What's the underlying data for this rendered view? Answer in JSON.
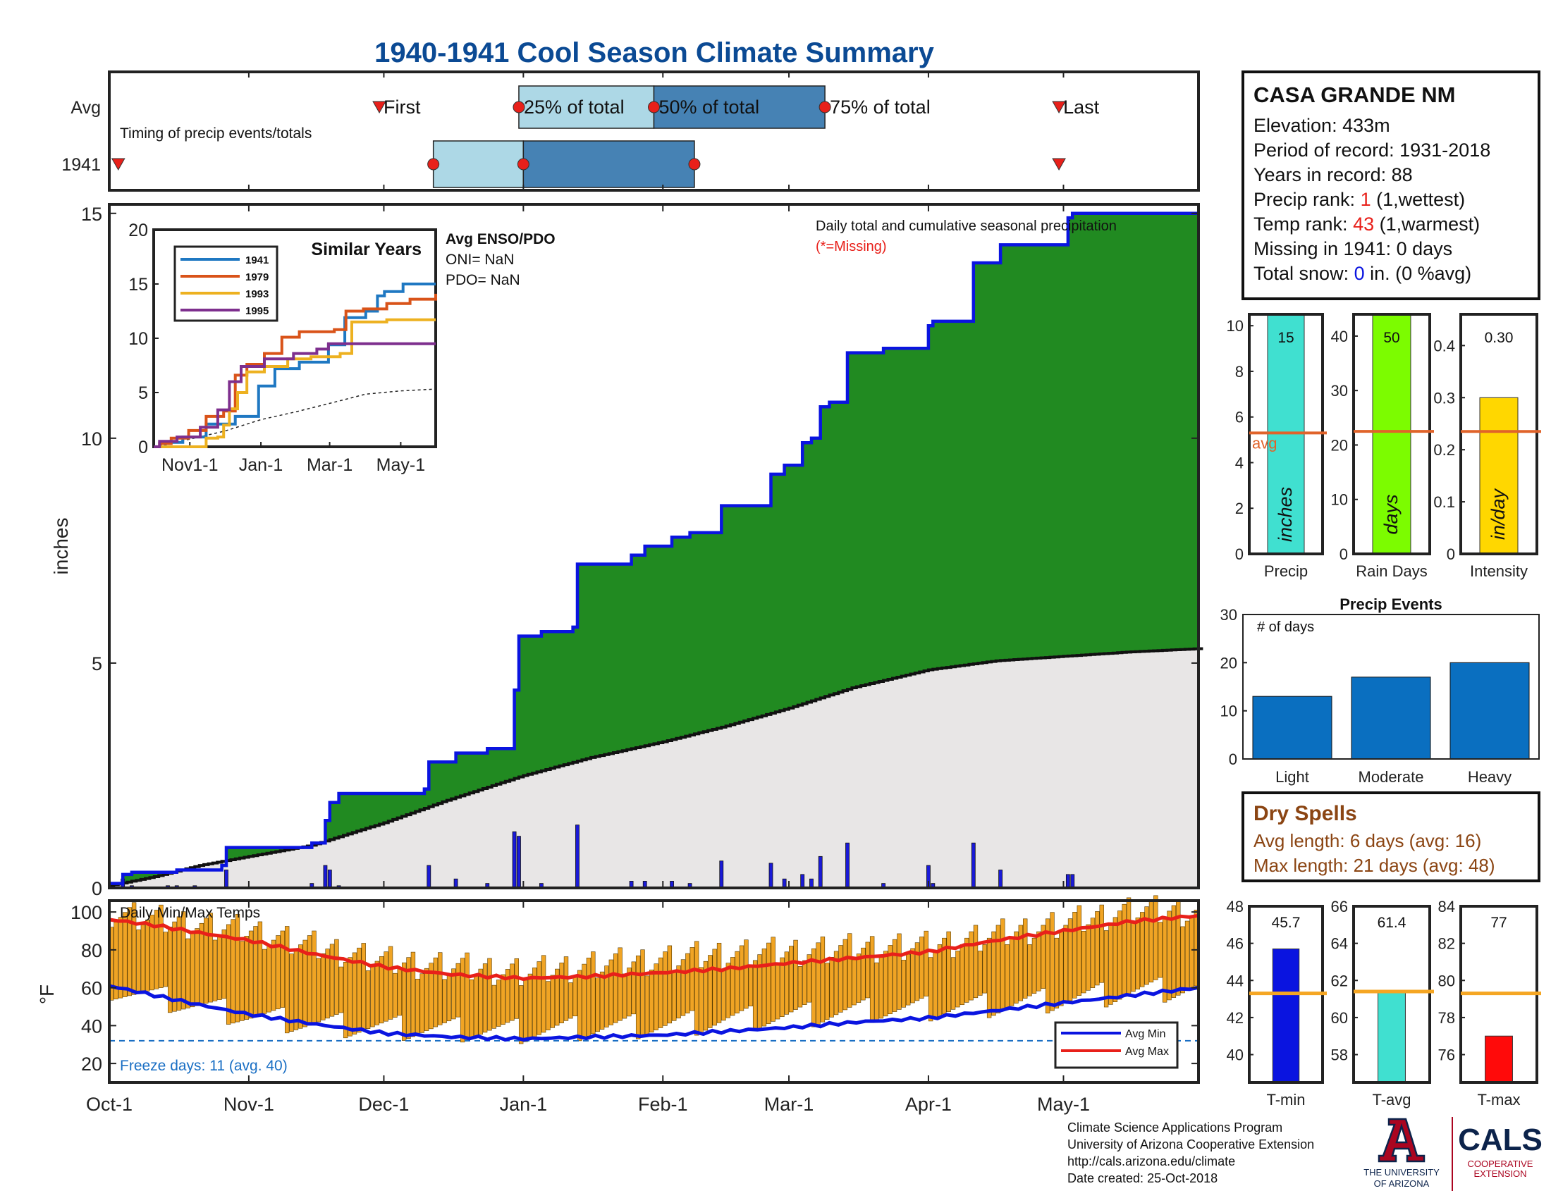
{
  "title": "1940-1941 Cool Season Climate Summary",
  "colors": {
    "title": "#0b4a94",
    "panel_border": "#222222",
    "obs_line": "#0a14e0",
    "surplus_fill": "#218a21",
    "avg_fill": "#e8e6e6",
    "avg_line": "#111111",
    "daily_bar": "#1a1ad8",
    "avg_marker": "#e0632a",
    "rank_red": "#e8201a",
    "snow_blue": "#0a14e0",
    "dry_spell": "#8b4513",
    "light_box": "#add8e6",
    "dark_box": "#4682b4",
    "temp_bar": "#f0a424",
    "avg_min": "#0a14e0",
    "avg_max": "#e8201a",
    "freeze_line": "#1a6fc4",
    "events_bar": "#0a6fc0",
    "precip_gauge": "#40e0d0",
    "raindays_gauge": "#7cfc00",
    "intensity_gauge": "#ffd700",
    "tmin_gauge": "#0a14e0",
    "tavg_gauge": "#40e0d0",
    "tmax_gauge": "#ff0a0a",
    "temp_avg_line": "#f5a623",
    "logo_red": "#ab0520",
    "logo_blue": "#0c234b"
  },
  "timing_panel": {
    "row_labels": [
      "Avg",
      "1941"
    ],
    "caption": "Timing of precip events/totals",
    "marker_labels": {
      "first": "First",
      "p25": "25% of total",
      "p50": "50% of total",
      "p75": "75% of total",
      "last": "Last"
    },
    "avg": {
      "first": 60,
      "p25": 91,
      "p50": 121,
      "p75": 159,
      "last": 211
    },
    "y1941": {
      "first": 2,
      "p25": 72,
      "p50": 92,
      "p75": 130,
      "last": 211
    }
  },
  "station": {
    "name": "CASA GRANDE NM",
    "elevation": "Elevation: 433m",
    "period": "Period of record: 1931-2018",
    "years": "Years in record: 88",
    "precip_rank_prefix": "Precip rank: ",
    "precip_rank_value": "1",
    "precip_rank_suffix": " (1,wettest)",
    "temp_rank_prefix": "Temp rank: ",
    "temp_rank_value": "43",
    "temp_rank_suffix": " (1,warmest)",
    "missing": "Missing in 1941: 0 days",
    "snow_prefix": "Total snow: ",
    "snow_value": "0",
    "snow_suffix": " in. (0 %avg)"
  },
  "main_chart": {
    "ylabel": "inches",
    "annotation": "Daily total and cumulative seasonal precipitation",
    "missing_note": "(*=Missing)",
    "x_ticks": [
      {
        "label": "Oct-1",
        "day": 0
      },
      {
        "label": "Nov-1",
        "day": 31
      },
      {
        "label": "Dec-1",
        "day": 61
      },
      {
        "label": "Jan-1",
        "day": 92
      },
      {
        "label": "Feb-1",
        "day": 123
      },
      {
        "label": "Mar-1",
        "day": 151
      },
      {
        "label": "Apr-1",
        "day": 182
      },
      {
        "label": "May-1",
        "day": 212
      }
    ],
    "y_ticks": [
      0,
      5,
      10,
      15
    ],
    "ylim": [
      0,
      15.2
    ],
    "xlim": [
      0,
      242
    ]
  },
  "chart_data": {
    "type": "area",
    "title": "1940-1941 Cool Season Climate Summary",
    "ylabel": "inches",
    "ylim": [
      0,
      15.2
    ],
    "cumulative_1941": [
      [
        0,
        0.1
      ],
      [
        3,
        0.3
      ],
      [
        5,
        0.35
      ],
      [
        13,
        0.35
      ],
      [
        15,
        0.4
      ],
      [
        18,
        0.4
      ],
      [
        19,
        0.4
      ],
      [
        25,
        0.5
      ],
      [
        26,
        0.9
      ],
      [
        41,
        0.9
      ],
      [
        45,
        1.0
      ],
      [
        48,
        1.5
      ],
      [
        49,
        1.9
      ],
      [
        51,
        2.1
      ],
      [
        53,
        2.1
      ],
      [
        70,
        2.2
      ],
      [
        71,
        2.8
      ],
      [
        76,
        2.8
      ],
      [
        77,
        3.0
      ],
      [
        83,
        3.0
      ],
      [
        84,
        3.1
      ],
      [
        89,
        3.1
      ],
      [
        90,
        4.4
      ],
      [
        91,
        5.6
      ],
      [
        92,
        5.6
      ],
      [
        96,
        5.7
      ],
      [
        103,
        5.8
      ],
      [
        104,
        7.2
      ],
      [
        115,
        7.2
      ],
      [
        116,
        7.4
      ],
      [
        119,
        7.6
      ],
      [
        124,
        7.6
      ],
      [
        125,
        7.8
      ],
      [
        128,
        7.8
      ],
      [
        129,
        7.9
      ],
      [
        135,
        7.9
      ],
      [
        136,
        8.5
      ],
      [
        146,
        8.5
      ],
      [
        147,
        9.2
      ],
      [
        149,
        9.2
      ],
      [
        150,
        9.4
      ],
      [
        153,
        9.4
      ],
      [
        154,
        9.9
      ],
      [
        156,
        10.0
      ],
      [
        158,
        10.7
      ],
      [
        160,
        10.8
      ],
      [
        163,
        10.8
      ],
      [
        164,
        11.9
      ],
      [
        171,
        11.9
      ],
      [
        172,
        12.0
      ],
      [
        181,
        12.0
      ],
      [
        182,
        12.5
      ],
      [
        183,
        12.6
      ],
      [
        191,
        12.6
      ],
      [
        192,
        13.9
      ],
      [
        197,
        13.9
      ],
      [
        198,
        14.3
      ],
      [
        212,
        14.3
      ],
      [
        213,
        14.9
      ],
      [
        214,
        15.0
      ],
      [
        242,
        15.0
      ]
    ],
    "cumulative_avg": [
      [
        0,
        0.05
      ],
      [
        10,
        0.25
      ],
      [
        20,
        0.5
      ],
      [
        31,
        0.7
      ],
      [
        45,
        0.95
      ],
      [
        61,
        1.45
      ],
      [
        75,
        1.95
      ],
      [
        92,
        2.5
      ],
      [
        107,
        2.9
      ],
      [
        123,
        3.25
      ],
      [
        137,
        3.6
      ],
      [
        151,
        4.0
      ],
      [
        165,
        4.45
      ],
      [
        182,
        4.85
      ],
      [
        197,
        5.05
      ],
      [
        212,
        5.15
      ],
      [
        227,
        5.25
      ],
      [
        242,
        5.32
      ]
    ],
    "daily_1941": [
      [
        3,
        0.2
      ],
      [
        5,
        0.05
      ],
      [
        13,
        0.05
      ],
      [
        15,
        0.05
      ],
      [
        19,
        0.05
      ],
      [
        26,
        0.4
      ],
      [
        45,
        0.1
      ],
      [
        48,
        0.5
      ],
      [
        49,
        0.4
      ],
      [
        51,
        0.05
      ],
      [
        71,
        0.5
      ],
      [
        77,
        0.2
      ],
      [
        84,
        0.1
      ],
      [
        90,
        1.25
      ],
      [
        91,
        1.15
      ],
      [
        96,
        0.1
      ],
      [
        104,
        1.4
      ],
      [
        116,
        0.15
      ],
      [
        119,
        0.15
      ],
      [
        125,
        0.15
      ],
      [
        129,
        0.1
      ],
      [
        136,
        0.6
      ],
      [
        147,
        0.55
      ],
      [
        150,
        0.2
      ],
      [
        154,
        0.3
      ],
      [
        156,
        0.2
      ],
      [
        158,
        0.7
      ],
      [
        164,
        1.0
      ],
      [
        172,
        0.1
      ],
      [
        182,
        0.5
      ],
      [
        183,
        0.1
      ],
      [
        192,
        1.0
      ],
      [
        198,
        0.4
      ],
      [
        213,
        0.3
      ],
      [
        214,
        0.3
      ]
    ],
    "similar_years": {
      "title": "Similar Years",
      "x_ticks": [
        "Nov1-1",
        "Jan-1",
        "Mar-1",
        "May-1"
      ],
      "y_ticks": [
        0,
        5,
        10,
        15,
        20
      ],
      "ylim": [
        0,
        20
      ],
      "series": [
        {
          "name": "1941",
          "color": "#1f78c2",
          "points": [
            [
              0,
              0
            ],
            [
              10,
              0.4
            ],
            [
              25,
              0.9
            ],
            [
              45,
              2.1
            ],
            [
              70,
              2.8
            ],
            [
              90,
              5.6
            ],
            [
              104,
              7.2
            ],
            [
              125,
              7.8
            ],
            [
              150,
              9.4
            ],
            [
              164,
              11.9
            ],
            [
              182,
              12.5
            ],
            [
              192,
              13.9
            ],
            [
              198,
              14.3
            ],
            [
              214,
              15.0
            ],
            [
              242,
              15.0
            ]
          ]
        },
        {
          "name": "1979",
          "color": "#d95319",
          "points": [
            [
              0,
              0
            ],
            [
              5,
              0.3
            ],
            [
              15,
              0.8
            ],
            [
              30,
              1.5
            ],
            [
              45,
              2.8
            ],
            [
              60,
              3.3
            ],
            [
              70,
              6.6
            ],
            [
              80,
              7.6
            ],
            [
              95,
              8.6
            ],
            [
              110,
              10.1
            ],
            [
              125,
              10.6
            ],
            [
              155,
              10.8
            ],
            [
              165,
              12.5
            ],
            [
              180,
              12.7
            ],
            [
              200,
              13.2
            ],
            [
              220,
              13.6
            ],
            [
              242,
              14.1
            ]
          ]
        },
        {
          "name": "1993",
          "color": "#edb120",
          "points": [
            [
              0,
              0
            ],
            [
              35,
              0
            ],
            [
              45,
              0.8
            ],
            [
              55,
              0.9
            ],
            [
              60,
              2.0
            ],
            [
              65,
              3.5
            ],
            [
              72,
              5.0
            ],
            [
              80,
              6.9
            ],
            [
              95,
              7.4
            ],
            [
              115,
              8.1
            ],
            [
              135,
              8.3
            ],
            [
              160,
              8.6
            ],
            [
              170,
              11.5
            ],
            [
              200,
              11.7
            ],
            [
              242,
              11.7
            ]
          ]
        },
        {
          "name": "1995",
          "color": "#7e2f8e",
          "points": [
            [
              0,
              0
            ],
            [
              5,
              0.5
            ],
            [
              20,
              0.9
            ],
            [
              40,
              1.8
            ],
            [
              55,
              3.4
            ],
            [
              65,
              6.0
            ],
            [
              75,
              7.4
            ],
            [
              95,
              8.1
            ],
            [
              120,
              8.6
            ],
            [
              140,
              9.0
            ],
            [
              150,
              9.5
            ],
            [
              170,
              9.5
            ],
            [
              242,
              9.5
            ]
          ]
        }
      ],
      "avg_points": [
        [
          0,
          0.05
        ],
        [
          31,
          0.7
        ],
        [
          61,
          1.45
        ],
        [
          92,
          2.5
        ],
        [
          123,
          3.25
        ],
        [
          151,
          4.0
        ],
        [
          182,
          4.85
        ],
        [
          212,
          5.15
        ],
        [
          242,
          5.32
        ]
      ]
    },
    "enso": {
      "title": "Avg ENSO/PDO",
      "oni": "ONI= NaN",
      "pdo": "PDO= NaN"
    },
    "gauges": {
      "precip": {
        "label": "Precip",
        "unit": "inches",
        "value": 15,
        "avg": 5.3,
        "ylim": [
          0,
          10.5
        ],
        "ticks": [
          0,
          2,
          4,
          6,
          8,
          10
        ],
        "value_label": "15",
        "avg_label": "avg"
      },
      "rain_days": {
        "label": "Rain Days",
        "unit": "days",
        "value": 50,
        "avg": 22.5,
        "ylim": [
          0,
          44
        ],
        "ticks": [
          0,
          10,
          20,
          30,
          40
        ],
        "value_label": "50"
      },
      "intensity": {
        "label": "Intensity",
        "unit": "in/day",
        "value": 0.3,
        "avg": 0.235,
        "ylim": [
          0,
          0.46
        ],
        "ticks": [
          0,
          0.1,
          0.2,
          0.3,
          0.4
        ],
        "tick_labels": [
          "0",
          "0.1",
          "0.2",
          "0.3",
          "0.4"
        ],
        "value_label": "0.30"
      }
    },
    "precip_events": {
      "title": "Precip Events",
      "ylabel": "# of days",
      "categories": [
        "Light",
        "Moderate",
        "Heavy"
      ],
      "values": [
        13,
        17,
        20
      ],
      "ylim": [
        0,
        30
      ],
      "ticks": [
        0,
        10,
        20,
        30
      ]
    },
    "temps": {
      "title": "Daily Min/Max Temps",
      "ylabel": "°F",
      "ylim": [
        10,
        106
      ],
      "y_ticks": [
        20,
        40,
        60,
        80,
        100
      ],
      "freeze_f": 32,
      "freeze_label": "Freeze days: 11 (avg. 40)",
      "legend": [
        "Avg Min",
        "Avg Max"
      ],
      "avg_max": [
        [
          0,
          96
        ],
        [
          10,
          93
        ],
        [
          20,
          89
        ],
        [
          31,
          85
        ],
        [
          45,
          78
        ],
        [
          61,
          71
        ],
        [
          76,
          67
        ],
        [
          92,
          65
        ],
        [
          107,
          66
        ],
        [
          123,
          68
        ],
        [
          137,
          70
        ],
        [
          151,
          73
        ],
        [
          167,
          76
        ],
        [
          182,
          79
        ],
        [
          197,
          85
        ],
        [
          212,
          90
        ],
        [
          227,
          95
        ],
        [
          242,
          98
        ]
      ],
      "avg_min": [
        [
          0,
          61
        ],
        [
          10,
          56
        ],
        [
          20,
          51
        ],
        [
          31,
          46
        ],
        [
          45,
          41
        ],
        [
          61,
          36
        ],
        [
          76,
          34
        ],
        [
          92,
          33
        ],
        [
          107,
          34
        ],
        [
          123,
          35
        ],
        [
          137,
          37
        ],
        [
          151,
          39
        ],
        [
          167,
          42
        ],
        [
          182,
          44
        ],
        [
          197,
          48
        ],
        [
          212,
          52
        ],
        [
          227,
          56
        ],
        [
          242,
          60
        ]
      ],
      "obs_max": [
        [
          0,
          100
        ],
        [
          10,
          96
        ],
        [
          20,
          93
        ],
        [
          31,
          90
        ],
        [
          45,
          82
        ],
        [
          61,
          74
        ],
        [
          76,
          71
        ],
        [
          92,
          68
        ],
        [
          107,
          72
        ],
        [
          123,
          75
        ],
        [
          137,
          78
        ],
        [
          151,
          79
        ],
        [
          167,
          81
        ],
        [
          182,
          82
        ],
        [
          197,
          88
        ],
        [
          212,
          94
        ],
        [
          227,
          101
        ],
        [
          242,
          100
        ]
      ],
      "obs_min": [
        [
          0,
          60
        ],
        [
          10,
          55
        ],
        [
          20,
          50
        ],
        [
          31,
          45
        ],
        [
          45,
          41
        ],
        [
          61,
          39
        ],
        [
          76,
          38
        ],
        [
          92,
          37
        ],
        [
          107,
          39
        ],
        [
          123,
          40
        ],
        [
          137,
          43
        ],
        [
          151,
          45
        ],
        [
          167,
          48
        ],
        [
          182,
          49
        ],
        [
          197,
          51
        ],
        [
          212,
          54
        ],
        [
          227,
          58
        ],
        [
          242,
          60
        ]
      ]
    },
    "temp_gauges": {
      "tmin": {
        "label": "T-min",
        "value": 45.7,
        "avg": 43.3,
        "ylim": [
          38.5,
          48
        ],
        "ticks": [
          40,
          42,
          44,
          46,
          48
        ],
        "value_label": "45.7"
      },
      "tavg": {
        "label": "T-avg",
        "value": 61.4,
        "avg": 61.4,
        "ylim": [
          56.5,
          66
        ],
        "ticks": [
          58,
          60,
          62,
          64,
          66
        ],
        "value_label": "61.4"
      },
      "tmax": {
        "label": "T-max",
        "value": 77,
        "avg": 79.3,
        "ylim": [
          74.5,
          84
        ],
        "ticks": [
          76,
          78,
          80,
          82,
          84
        ],
        "value_label": "77"
      }
    }
  },
  "dry_spells": {
    "title": "Dry Spells",
    "avg_length": "Avg length: 6 days (avg: 16)",
    "max_length": "Max length: 21 days (avg: 48)"
  },
  "footer": {
    "line1": "Climate Science Applications Program",
    "line2": "University of Arizona Cooperative Extension",
    "line3": "http://cals.arizona.edu/climate",
    "line4": " Date created: 25-Oct-2018"
  },
  "logos": {
    "ua_line1": "THE UNIVERSITY",
    "ua_line2": "OF ARIZONA",
    "cals": "CALS",
    "cals_sub1": "COOPERATIVE",
    "cals_sub2": "EXTENSION"
  }
}
